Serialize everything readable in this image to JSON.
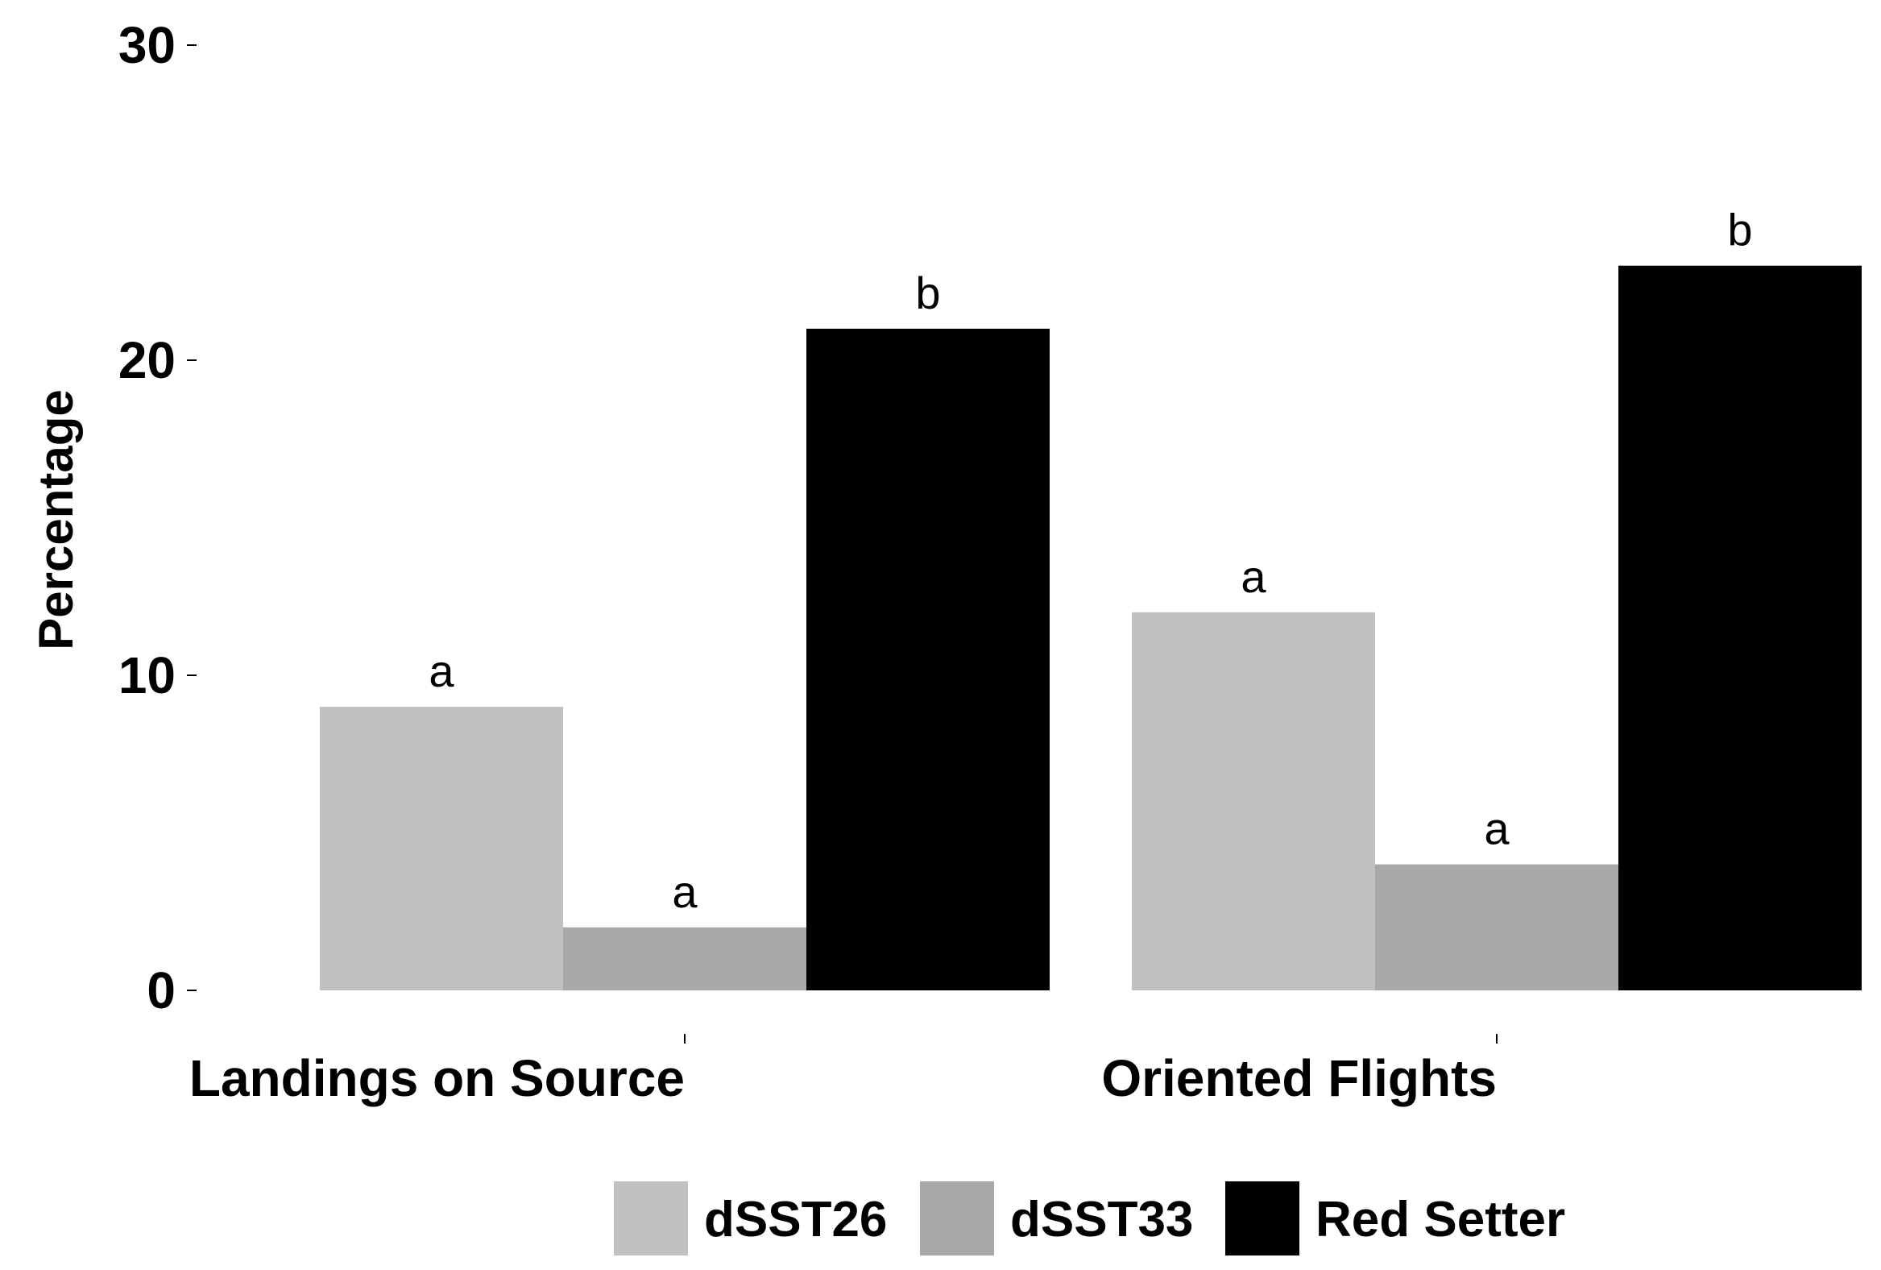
{
  "chart_data": {
    "type": "bar",
    "categories": [
      "Landings on Source",
      "Oriented Flights"
    ],
    "series": [
      {
        "name": "dSST26",
        "values": [
          9,
          12
        ],
        "labels": [
          "a",
          "a"
        ],
        "color": "#c0c0c0"
      },
      {
        "name": "dSST33",
        "values": [
          2,
          4
        ],
        "labels": [
          "a",
          "a"
        ],
        "color": "#a8a8a8"
      },
      {
        "name": "Red Setter",
        "values": [
          21,
          23
        ],
        "labels": [
          "b",
          "b"
        ],
        "color": "#000000"
      }
    ],
    "yticks": [
      "0",
      "10",
      "20",
      "30"
    ],
    "ylabel": "Percentage",
    "xlabel": "",
    "ylim": [
      0,
      30
    ],
    "grid": false,
    "legend_position": "bottom"
  }
}
